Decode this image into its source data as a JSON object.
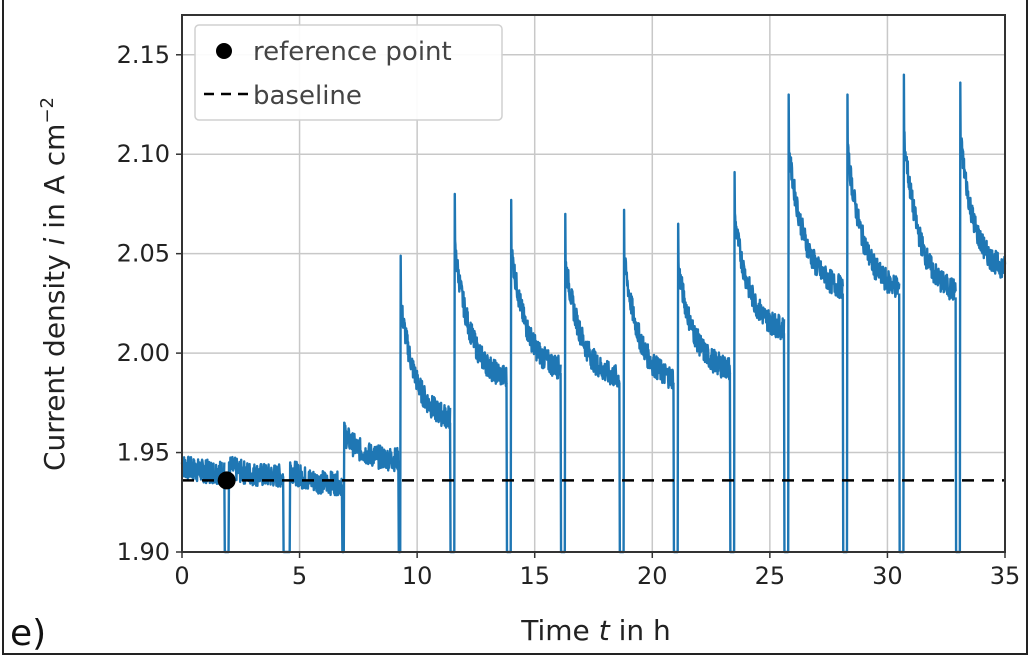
{
  "panel_label": "e)",
  "chart_data": {
    "type": "line",
    "title": "",
    "xlabel_pre": "Time ",
    "xlabel_var": "t",
    "xlabel_post": " in h",
    "ylabel_pre": "Current density ",
    "ylabel_var": "i",
    "ylabel_post": " in A cm",
    "ylabel_sup": "−2",
    "xlim": [
      0,
      35
    ],
    "ylim": [
      1.9,
      2.17
    ],
    "xticks": [
      0,
      5,
      10,
      15,
      20,
      25,
      30,
      35
    ],
    "xtick_labels": [
      "0",
      "5",
      "10",
      "15",
      "20",
      "25",
      "30",
      "35"
    ],
    "yticks": [
      1.9,
      1.95,
      2.0,
      2.05,
      2.1,
      2.15
    ],
    "ytick_labels": [
      "1.90",
      "1.95",
      "2.00",
      "2.05",
      "2.10",
      "2.15"
    ],
    "grid": true,
    "legend": {
      "placement": "top-left",
      "entries": [
        "reference point",
        "baseline"
      ]
    },
    "colors": {
      "series": "#1f77b4",
      "baseline": "#000000",
      "reference": "#000000",
      "grid": "#c8c8c8"
    },
    "baseline_y": 1.936,
    "reference_point": {
      "x": 1.9,
      "y": 1.936
    },
    "interruption_depth": 1.9,
    "segments": [
      {
        "start": 0.0,
        "end": 1.8,
        "peak": 1.945,
        "tail": 1.94
      },
      {
        "start": 2.0,
        "end": 4.3,
        "peak": 1.945,
        "tail": 1.938
      },
      {
        "start": 4.6,
        "end": 6.8,
        "peak": 1.945,
        "tail": 1.934
      },
      {
        "start": 6.9,
        "end": 9.2,
        "peak": 1.965,
        "tail": 1.946
      },
      {
        "start": 9.3,
        "end": 11.4,
        "peak": 2.049,
        "tail": 1.965
      },
      {
        "start": 11.6,
        "end": 13.8,
        "peak": 2.08,
        "tail": 1.985
      },
      {
        "start": 14.0,
        "end": 16.1,
        "peak": 2.077,
        "tail": 1.99
      },
      {
        "start": 16.3,
        "end": 18.6,
        "peak": 2.07,
        "tail": 1.985
      },
      {
        "start": 18.8,
        "end": 20.9,
        "peak": 2.072,
        "tail": 1.985
      },
      {
        "start": 21.1,
        "end": 23.3,
        "peak": 2.065,
        "tail": 1.99
      },
      {
        "start": 23.5,
        "end": 25.6,
        "peak": 2.091,
        "tail": 2.01
      },
      {
        "start": 25.8,
        "end": 28.1,
        "peak": 2.13,
        "tail": 2.03
      },
      {
        "start": 28.3,
        "end": 30.5,
        "peak": 2.13,
        "tail": 2.03
      },
      {
        "start": 30.7,
        "end": 32.9,
        "peak": 2.14,
        "tail": 2.028
      },
      {
        "start": 33.1,
        "end": 35.0,
        "peak": 2.136,
        "tail": 2.04
      }
    ]
  }
}
